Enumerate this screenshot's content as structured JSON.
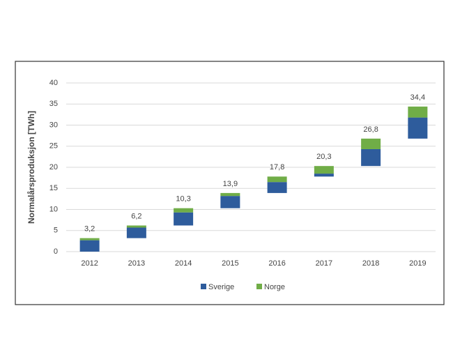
{
  "chart_data": {
    "type": "waterfall_stacked",
    "y_label": "Normalårsproduksjon [TWh]",
    "categories": [
      "2012",
      "2013",
      "2014",
      "2015",
      "2016",
      "2017",
      "2018",
      "2019"
    ],
    "series": [
      {
        "name": "Sverige",
        "color": "#2e5c9c",
        "values": [
          2.7,
          2.5,
          3.1,
          2.9,
          2.6,
          0.7,
          4.0,
          5.0
        ]
      },
      {
        "name": "Norge",
        "color": "#70ad47",
        "values": [
          0.5,
          0.5,
          1.0,
          0.7,
          1.3,
          1.8,
          2.5,
          2.6
        ]
      }
    ],
    "totals": {
      "values": [
        3.2,
        6.2,
        10.3,
        13.9,
        17.8,
        20.3,
        26.8,
        34.4
      ],
      "value_labels": [
        "3,2",
        "6,2",
        "10,3",
        "13,9",
        "17,8",
        "20,3",
        "26,8",
        "34,4"
      ]
    },
    "ylim": [
      0,
      40
    ],
    "yticks": [
      0,
      5,
      10,
      15,
      20,
      25,
      30,
      35,
      40
    ],
    "grid": true,
    "legend": "bottom"
  }
}
